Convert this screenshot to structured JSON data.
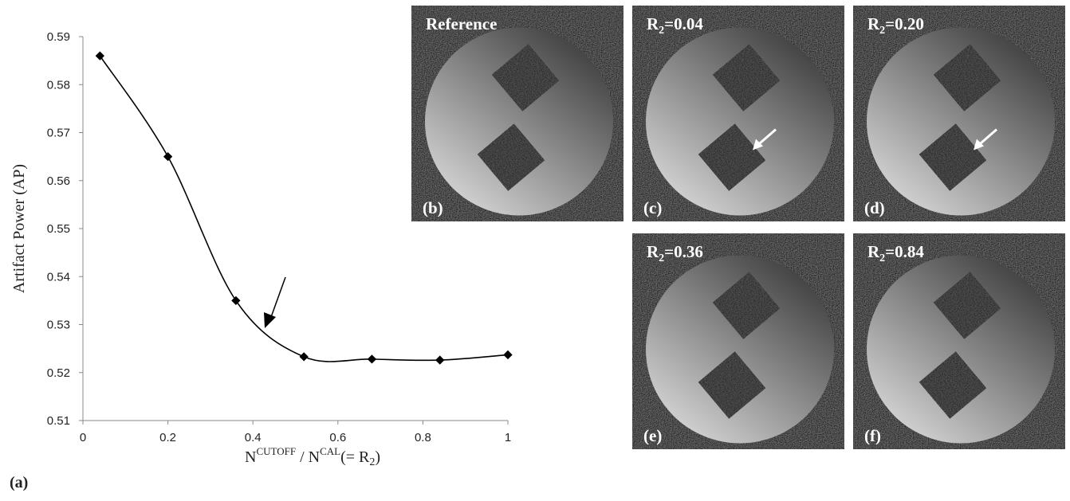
{
  "chart_data": {
    "type": "line",
    "y_label": "Artifact Power (AP)",
    "x_label_parts": [
      "N",
      "CUTOFF",
      " / N",
      "CAL",
      "(= R",
      "2",
      ")"
    ],
    "x": [
      0.04,
      0.2,
      0.36,
      0.52,
      0.68,
      0.84,
      1
    ],
    "values": [
      0.586,
      0.565,
      0.535,
      0.5233,
      0.5228,
      0.5226,
      0.5237
    ],
    "color": "#000000",
    "xlim": [
      0,
      1
    ],
    "xticks": [
      0,
      0.2,
      0.4,
      0.6,
      0.8,
      1
    ],
    "ylim": [
      0.51,
      0.59
    ],
    "yticks": [
      0.51,
      0.52,
      0.53,
      0.54,
      0.55,
      0.56,
      0.57,
      0.58,
      0.59
    ]
  },
  "chart_label": "(a)",
  "panels": [
    {
      "label": "(b)",
      "title": "Reference"
    },
    {
      "label": "(c)",
      "title": {
        "main": "R",
        "sub": "2",
        "rest": "=0.04"
      }
    },
    {
      "label": "(d)",
      "title": {
        "main": "R",
        "sub": "2",
        "rest": "=0.20"
      }
    },
    {
      "label": "(e)",
      "title": {
        "main": "R",
        "sub": "2",
        "rest": "=0.36"
      }
    },
    {
      "label": "(f)",
      "title": {
        "main": "R",
        "sub": "2",
        "rest": "=0.84"
      }
    }
  ]
}
